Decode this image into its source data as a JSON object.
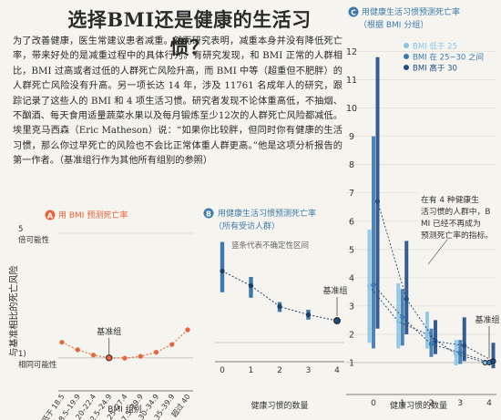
{
  "article": {
    "title": "选择BMI还是健康的生活习惯？",
    "body": "为了改善健康，医生常建议患者减重。然而研究表明，减重本身并没有降低死亡率，带来好处的是减重过程中的具体行为。有研究发现，和 BMI 正常的人群相比，BMI 过高或者过低的人群死亡风险升高，而 BMI 中等（超重但不肥胖）的人群死亡风险没有升高。另一项长达 14 年，涉及 11761 名成年人的研究，跟踪记录了这些人的 BMI 和 4 项生活习惯。研究者发现不论体重高低，不抽烟、不酗酒、每天食用适量蔬菜水果以及每月锻炼至少12次的人群死亡风险都减低。埃里克马西森（Eric Matheson）说：“如果你比较胖，但同时你有健康的生活习惯，那么你过早死亡的风险也不会比正常体重人群更高。”他是这项分析报告的第一作者。（基准组行作为其他所有组别的参照）",
    "shared_ylabel": "与基准相比的死亡风险"
  },
  "colors": {
    "orange": "#e8643a",
    "dark_blue": "#1f4e86",
    "mid_blue": "#3c79ad",
    "light_blue": "#8cc4e6",
    "panel_a_badge": "#e8643a",
    "panel_bc_badge": "#3c79ad",
    "text_panel_a": "#e8643a",
    "text_panel_bc": "#3c79ad"
  },
  "chart_data": [
    {
      "id": "A",
      "type": "line",
      "title": "用 BMI 预测死亡率",
      "xlabel": "BMI 组别",
      "categories": [
        "低于 18.5",
        "18.5–19.9",
        "20–22.4",
        "22.5–24.9",
        "25–27.4",
        "27.5–29.9",
        "30–34.9",
        "35–39.9",
        "超过 40"
      ],
      "values": [
        1.5,
        1.26,
        1.09,
        1.0,
        0.99,
        1.05,
        1.18,
        1.43,
        1.9
      ],
      "reference_index": 3,
      "reference_label": "基准组",
      "ylim": [
        0,
        5
      ],
      "y_axis_labels": [
        {
          "value": 5,
          "text": "5 倍可能性"
        },
        {
          "value": 1,
          "text": "1) 相同可能性"
        }
      ],
      "color": "#e8643a"
    },
    {
      "id": "B",
      "type": "line",
      "title": "用健康生活习惯预测死亡率",
      "subtitle": "（所有受访人群）",
      "xlabel": "健康习惯的数量",
      "x": [
        0,
        1,
        2,
        3,
        4
      ],
      "values": [
        3.27,
        2.6,
        1.65,
        1.27,
        1.0
      ],
      "ci_low": [
        2.3,
        2.05,
        1.4,
        1.05,
        1.0
      ],
      "ci_high": [
        4.6,
        3.0,
        1.85,
        1.5,
        1.0
      ],
      "annotation": "竖条代表不确定性区间",
      "reference_index": 4,
      "reference_label": "基准组",
      "ylim": [
        0,
        5
      ],
      "color": "#3c79ad"
    },
    {
      "id": "C",
      "type": "line",
      "title": "用健康生活习惯预测死亡率",
      "subtitle": "（根据 BMI 分组）",
      "xlabel": "健康习惯的数量",
      "x": [
        0,
        1,
        2,
        3,
        4
      ],
      "y_ticks": [
        1,
        2,
        3,
        4,
        5,
        6,
        7,
        8,
        9,
        10,
        11,
        12
      ],
      "ylim": [
        0,
        12.5
      ],
      "series": [
        {
          "name": "BMI 低于 25",
          "color": "#8cc4e6",
          "values": [
            3.7,
            2.45,
            2.0,
            1.3,
            1.0
          ],
          "ci_low": [
            1.7,
            1.5,
            1.5,
            0.9,
            1.0
          ],
          "ci_high": [
            5.7,
            3.8,
            2.8,
            1.8,
            1.0
          ]
        },
        {
          "name": "BMI 在 25~30 之间",
          "color": "#3c79ad",
          "values": [
            3.75,
            2.6,
            1.65,
            1.35,
            1.0
          ],
          "ci_low": [
            1.5,
            1.6,
            1.2,
            0.95,
            1.0
          ],
          "ci_high": [
            9.0,
            3.6,
            2.2,
            1.8,
            1.0
          ]
        },
        {
          "name": "BMI 高于 30",
          "color": "#1f4e86",
          "values": [
            6.7,
            3.25,
            1.75,
            1.6,
            1.05
          ],
          "ci_low": [
            2.2,
            2.0,
            1.3,
            1.05,
            0.8
          ],
          "ci_high": [
            11.8,
            5.3,
            2.5,
            2.6,
            1.7
          ]
        }
      ],
      "annotation": "在有 4 种健康生活习惯的人群中，BMI 已经不再成为预测死亡率的指标。",
      "reference_index": 4,
      "reference_label": "基准组"
    }
  ]
}
